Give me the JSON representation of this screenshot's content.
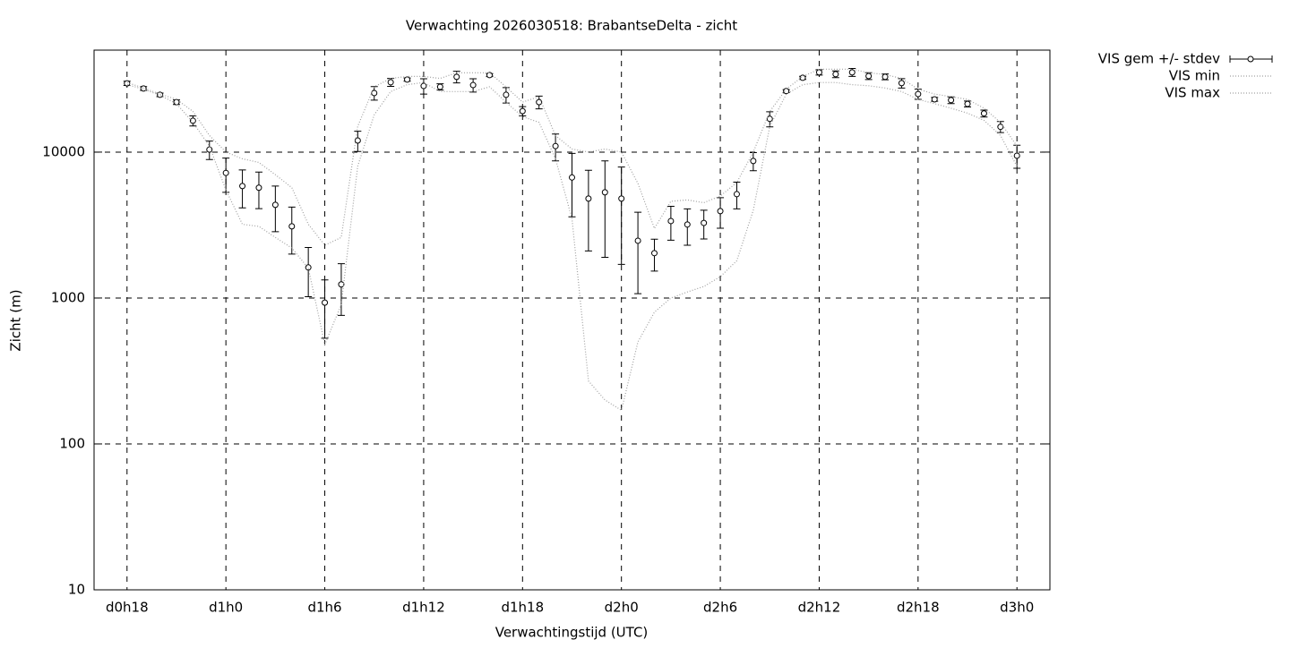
{
  "chart_data": {
    "type": "errorbar-line",
    "title": "Verwachting 2026030518: BrabantseDelta - zicht",
    "xlabel": "Verwachtingstijd (UTC)",
    "ylabel": "Zicht (m)",
    "x": [
      0,
      1,
      2,
      3,
      4,
      5,
      6,
      7,
      8,
      9,
      10,
      11,
      12,
      13,
      14,
      15,
      16,
      17,
      18,
      19,
      20,
      21,
      22,
      23,
      24,
      25,
      26,
      27,
      28,
      29,
      30,
      31,
      32,
      33,
      34,
      35,
      36,
      37,
      38,
      39,
      40,
      41,
      42,
      43,
      44,
      45,
      46,
      47,
      48,
      49,
      50,
      51,
      52,
      53,
      54
    ],
    "xlim": [
      -2,
      56
    ],
    "xticks": [
      {
        "value": 0,
        "label": "d0h18"
      },
      {
        "value": 6,
        "label": "d1h0"
      },
      {
        "value": 12,
        "label": "d1h6"
      },
      {
        "value": 18,
        "label": "d1h12"
      },
      {
        "value": 24,
        "label": "d1h18"
      },
      {
        "value": 30,
        "label": "d2h0"
      },
      {
        "value": 36,
        "label": "d2h6"
      },
      {
        "value": 42,
        "label": "d2h12"
      },
      {
        "value": 48,
        "label": "d2h18"
      },
      {
        "value": 54,
        "label": "d3h0"
      }
    ],
    "ylim": [
      10,
      50000
    ],
    "yticks": [
      10,
      100,
      1000,
      10000
    ],
    "log_y": true,
    "grid": true,
    "legend": "outside-top-right",
    "series": [
      {
        "name": "VIS gem +/- stdev",
        "color": "#000000",
        "values": [
          29600,
          27300,
          24700,
          22000,
          16400,
          10400,
          7200,
          5850,
          5700,
          4350,
          3100,
          1620,
          930,
          1240,
          12000,
          25400,
          30100,
          31400,
          28400,
          28000,
          32800,
          28800,
          33700,
          24700,
          19100,
          22000,
          11000,
          6700,
          4800,
          5300,
          4800,
          2470,
          2030,
          3370,
          3190,
          3270,
          3940,
          5150,
          8690,
          16900,
          26200,
          32300,
          35200,
          34200,
          35200,
          33200,
          32800,
          29700,
          25000,
          23000,
          22700,
          21400,
          18400,
          14900,
          9450
        ],
        "errors": [
          1000,
          800,
          700,
          800,
          1300,
          1500,
          1900,
          1700,
          1600,
          1500,
          1100,
          600,
          400,
          480,
          1900,
          2700,
          1900,
          800,
          3400,
          1400,
          3000,
          3000,
          800,
          3000,
          1400,
          2200,
          2300,
          3100,
          2700,
          3400,
          3100,
          1400,
          500,
          880,
          890,
          730,
          930,
          1070,
          1230,
          2000,
          600,
          800,
          1500,
          1800,
          2200,
          1800,
          1500,
          2200,
          2000,
          700,
          1200,
          1000,
          1000,
          1300,
          1700
        ]
      },
      {
        "name": "VIS min",
        "color": "#a0a0a0",
        "values": [
          29000,
          27000,
          24500,
          21500,
          16000,
          11000,
          5500,
          3200,
          3100,
          2600,
          2200,
          1600,
          480,
          900,
          8000,
          18000,
          26000,
          29000,
          30000,
          26000,
          26000,
          26000,
          28000,
          22000,
          17500,
          16000,
          9000,
          3500,
          270,
          200,
          170,
          500,
          800,
          1000,
          1100,
          1200,
          1400,
          1800,
          4000,
          15000,
          25000,
          29000,
          30000,
          30000,
          29000,
          28500,
          27500,
          26000,
          23000,
          21500,
          20000,
          18500,
          16500,
          13000,
          8000
        ]
      },
      {
        "name": "VIS max",
        "color": "#a0a0a0",
        "values": [
          30000,
          27500,
          25000,
          23000,
          19000,
          13000,
          10000,
          9000,
          8500,
          7000,
          5700,
          3200,
          2300,
          2600,
          15000,
          28000,
          32000,
          33000,
          33000,
          32000,
          35000,
          35000,
          35000,
          28000,
          22000,
          24000,
          13000,
          10500,
          10000,
          10500,
          10000,
          6100,
          3000,
          4600,
          4700,
          4500,
          5000,
          6200,
          10000,
          19000,
          27000,
          33000,
          37000,
          37000,
          37000,
          35000,
          34000,
          32000,
          27000,
          25000,
          24000,
          23000,
          20000,
          16000,
          11000
        ]
      }
    ]
  }
}
